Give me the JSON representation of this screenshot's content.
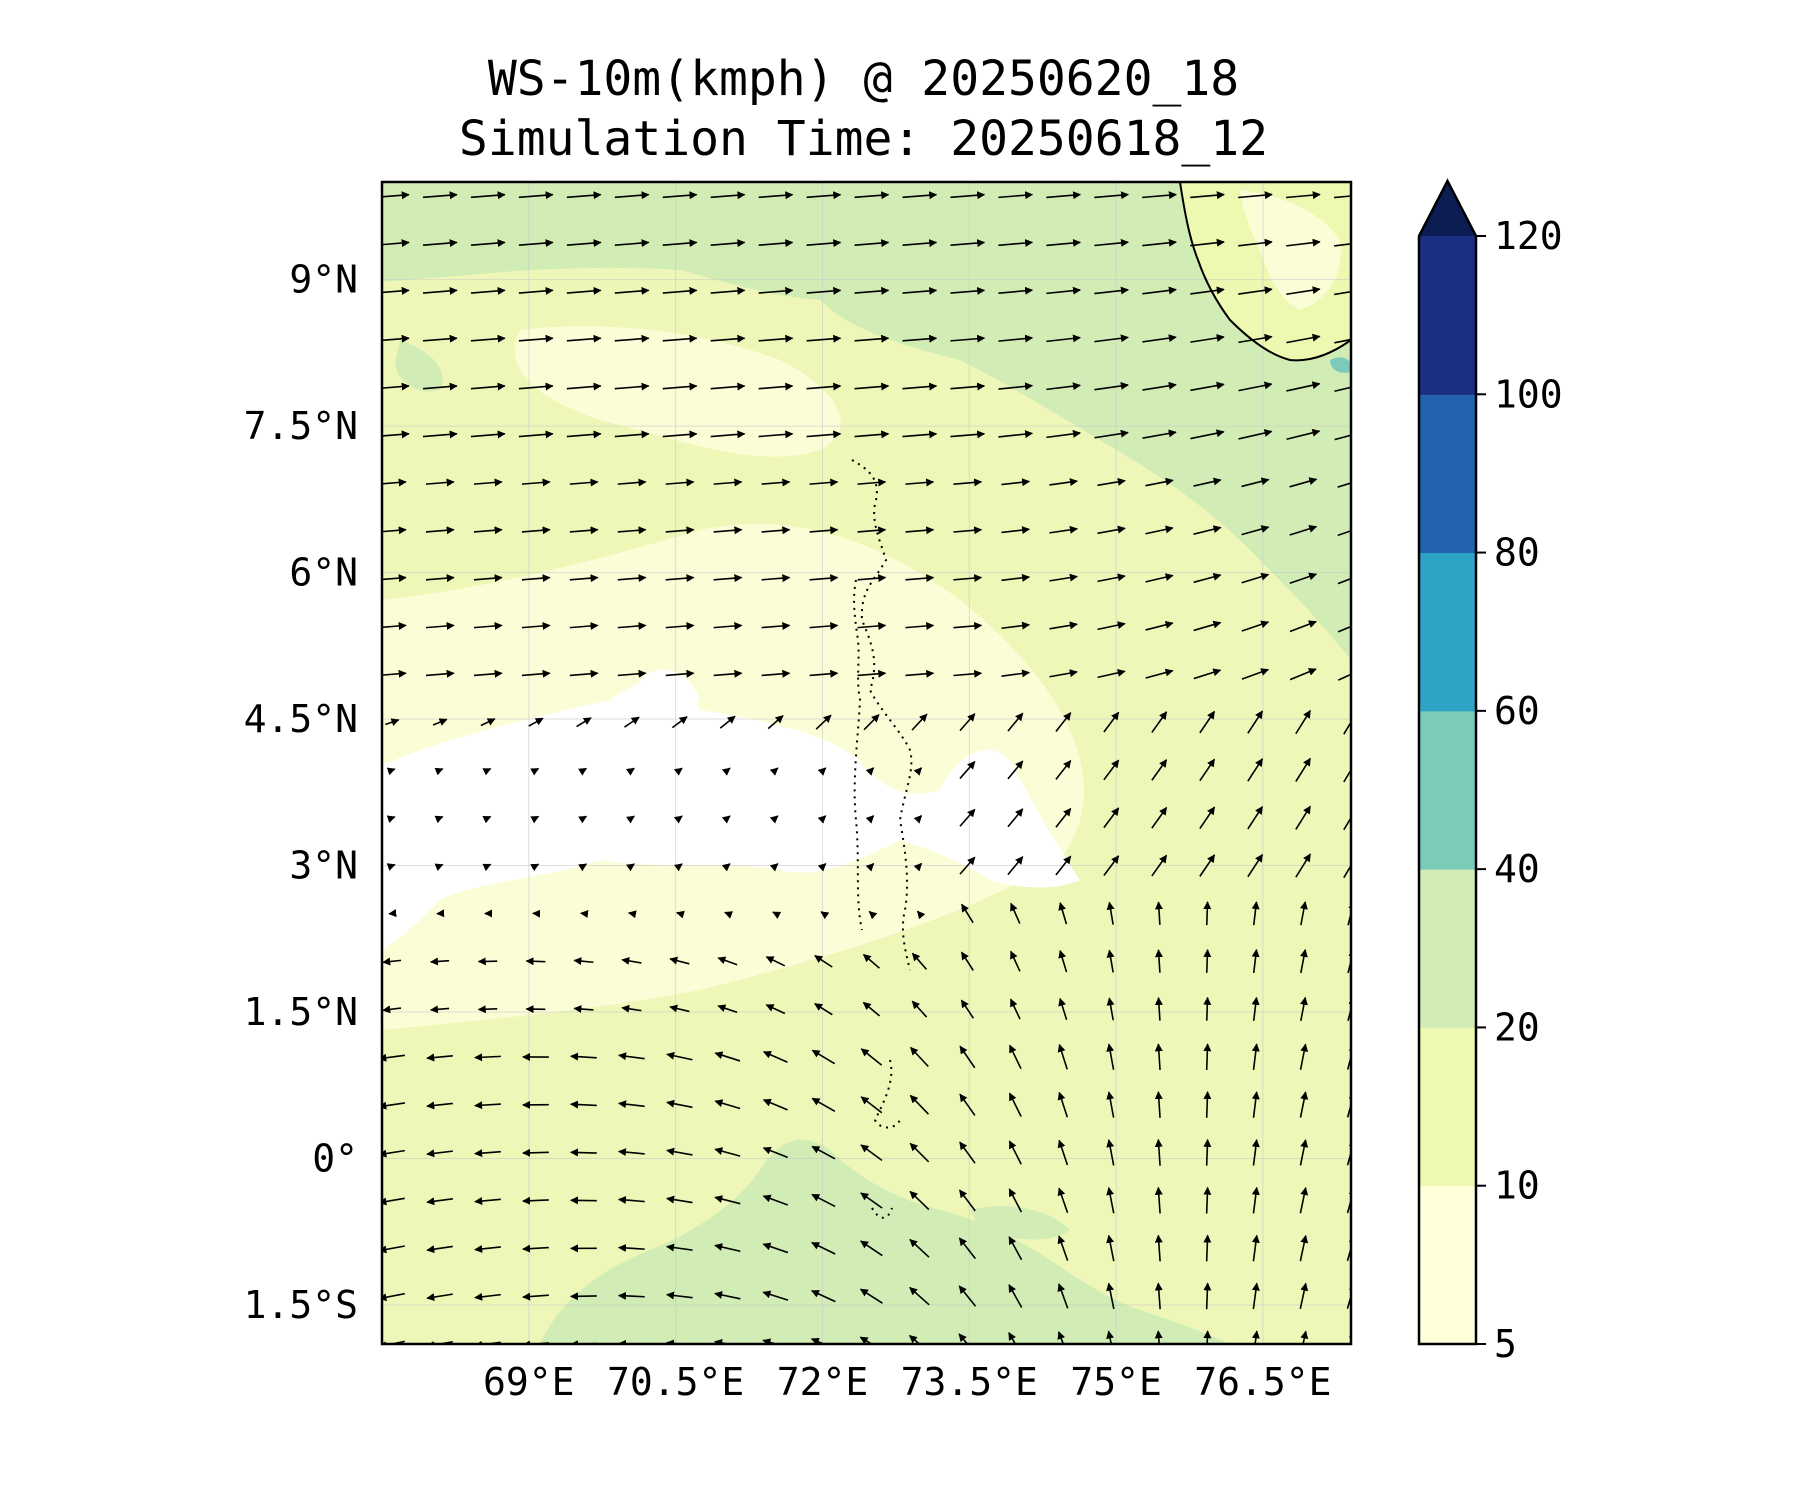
{
  "title": "WS-10m(kmph) @ 20250620_18",
  "subtitle": "Simulation Time: 20250618_12",
  "map": {
    "lon_range": [
      67.5,
      77.4
    ],
    "lat_range": [
      -1.9,
      10.0
    ],
    "lat_ticks": [
      {
        "value": 9.0,
        "label": "9°N"
      },
      {
        "value": 7.5,
        "label": "7.5°N"
      },
      {
        "value": 6.0,
        "label": "6°N"
      },
      {
        "value": 4.5,
        "label": "4.5°N"
      },
      {
        "value": 3.0,
        "label": "3°N"
      },
      {
        "value": 1.5,
        "label": "1.5°N"
      },
      {
        "value": 0.0,
        "label": "0°"
      },
      {
        "value": -1.5,
        "label": "1.5°S"
      }
    ],
    "lon_ticks": [
      {
        "value": 69.0,
        "label": "69°E"
      },
      {
        "value": 70.5,
        "label": "70.5°E"
      },
      {
        "value": 72.0,
        "label": "72°E"
      },
      {
        "value": 73.5,
        "label": "73.5°E"
      },
      {
        "value": 75.0,
        "label": "75°E"
      },
      {
        "value": 76.5,
        "label": "76.5°E"
      }
    ],
    "gridlines": true,
    "background_color": "#eef7b8",
    "features": [
      "wind-speed-contours",
      "wind-vectors",
      "india-coastline",
      "maldives-atolls"
    ]
  },
  "colorbar": {
    "extend": "max",
    "levels": [
      {
        "value": 5,
        "label": "5"
      },
      {
        "value": 10,
        "label": "10"
      },
      {
        "value": 20,
        "label": "20"
      },
      {
        "value": 40,
        "label": "40"
      },
      {
        "value": 60,
        "label": "60"
      },
      {
        "value": 80,
        "label": "80"
      },
      {
        "value": 100,
        "label": "100"
      },
      {
        "value": 120,
        "label": "120"
      }
    ],
    "colors": [
      "#ffffd9",
      "#edf8b1",
      "#d1edb5",
      "#7ccaba",
      "#2da4c6",
      "#2362ac",
      "#1c2e81",
      "#0b1d52"
    ]
  }
}
